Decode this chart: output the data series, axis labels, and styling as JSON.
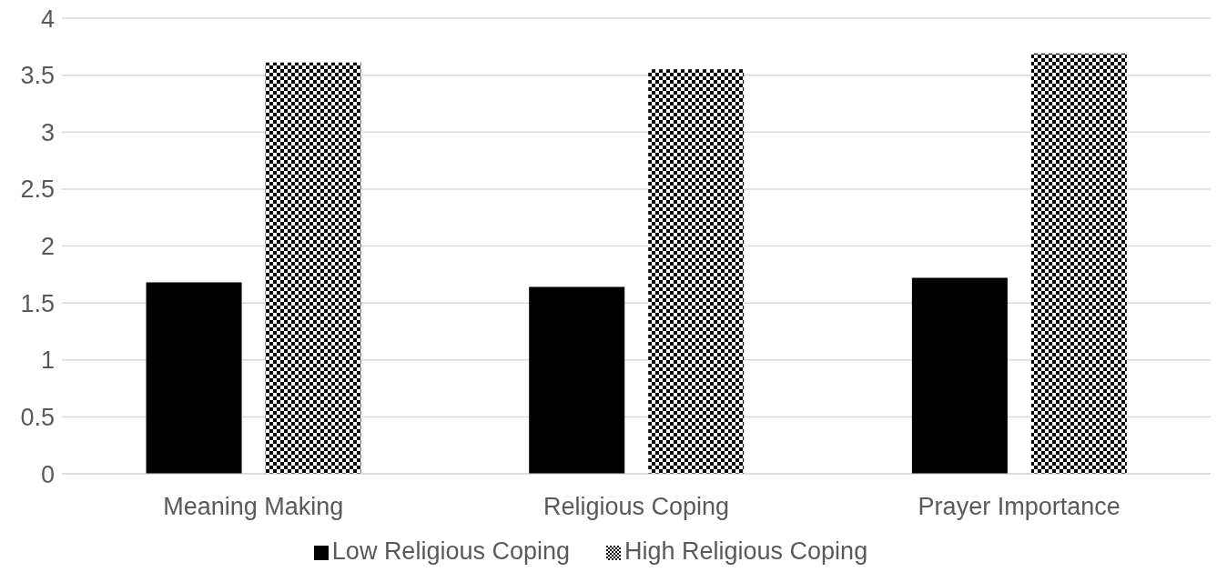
{
  "chart_data": {
    "type": "bar",
    "categories": [
      "Meaning Making",
      "Religious Coping",
      "Prayer Importance"
    ],
    "series": [
      {
        "name": "Low Religious Coping",
        "color": "#000000",
        "values": [
          1.68,
          1.64,
          1.72
        ]
      },
      {
        "name": "High Religious Coping",
        "color": "#000000",
        "values": [
          3.61,
          3.55,
          3.69
        ]
      }
    ],
    "ylim": [
      0,
      4
    ],
    "yticks": [
      0,
      0.5,
      1,
      1.5,
      2,
      2.5,
      3,
      3.5,
      4
    ],
    "grid": "y",
    "legend": "bottom"
  }
}
